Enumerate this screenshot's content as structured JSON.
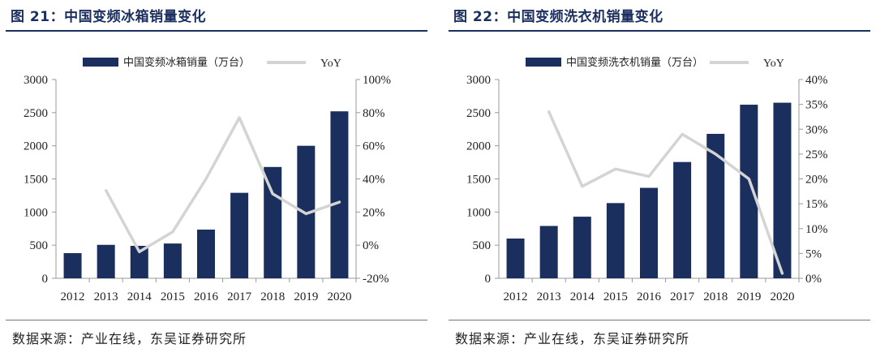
{
  "colors": {
    "bar": "#1b2f5e",
    "line": "#d4d4d4",
    "axis": "#999999",
    "title": "#1b2f5e"
  },
  "source_text": "数据来源：产业在线，东吴证券研究所",
  "chart_data": [
    {
      "type": "bar",
      "title": "图 21：中国变频冰箱销量变化",
      "categories": [
        "2012",
        "2013",
        "2014",
        "2015",
        "2016",
        "2017",
        "2018",
        "2019",
        "2020"
      ],
      "series": [
        {
          "name": "中国变频冰箱销量（万台）",
          "axis": "left",
          "values": [
            380,
            505,
            490,
            525,
            735,
            1290,
            1680,
            2000,
            2520
          ]
        },
        {
          "name": "YoY",
          "type": "line",
          "axis": "right",
          "values": [
            null,
            33,
            -4,
            8,
            40,
            77,
            31,
            19,
            26
          ]
        }
      ],
      "ylim": [
        0,
        3000
      ],
      "yticks": [
        0,
        500,
        1000,
        1500,
        2000,
        2500,
        3000
      ],
      "y2lim": [
        -20,
        100
      ],
      "y2ticks": [
        "-20%",
        "0%",
        "20%",
        "40%",
        "60%",
        "80%",
        "100%"
      ],
      "legend": "top",
      "grid": false
    },
    {
      "type": "bar",
      "title": "图 22：中国变频洗衣机销量变化",
      "categories": [
        "2012",
        "2013",
        "2014",
        "2015",
        "2016",
        "2017",
        "2018",
        "2019",
        "2020"
      ],
      "series": [
        {
          "name": "中国变频洗衣机销量（万台）",
          "axis": "left",
          "values": [
            600,
            790,
            930,
            1135,
            1365,
            1755,
            2180,
            2620,
            2650
          ]
        },
        {
          "name": "YoY",
          "type": "line",
          "axis": "right",
          "values": [
            null,
            33.5,
            18.5,
            22,
            20.5,
            29,
            25,
            20,
            1
          ]
        }
      ],
      "ylim": [
        0,
        3000
      ],
      "yticks": [
        0,
        500,
        1000,
        1500,
        2000,
        2500,
        3000
      ],
      "y2lim": [
        0,
        40
      ],
      "y2ticks": [
        "0%",
        "5%",
        "10%",
        "15%",
        "20%",
        "25%",
        "30%",
        "35%",
        "40%"
      ],
      "legend": "top",
      "grid": false
    }
  ]
}
